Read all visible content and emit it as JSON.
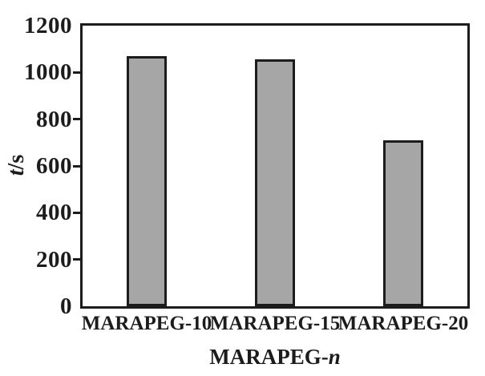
{
  "chart_data": {
    "type": "bar",
    "categories": [
      "MARAPEG-10",
      "MARAPEG-15",
      "MARAPEG-20"
    ],
    "values": [
      1070,
      1055,
      710
    ],
    "title": "",
    "xlabel": "MARAPEG-n",
    "xlabel_prefix": "MARAPEG-",
    "xlabel_variable": "n",
    "ylabel": "t/s",
    "ylabel_variable": "t",
    "ylabel_unit": "/s",
    "ylim": [
      0,
      1200
    ],
    "yticks": [
      0,
      200,
      400,
      600,
      800,
      1000,
      1200
    ],
    "ytick_marks": [
      200,
      400,
      600,
      800,
      1000
    ],
    "grid": false,
    "legend_position": "none",
    "bar_fill_color": "#a6a6a6",
    "bar_border_color": "#1c1c1c",
    "axis_color": "#1c1c1c",
    "background_color": "#ffffff"
  }
}
